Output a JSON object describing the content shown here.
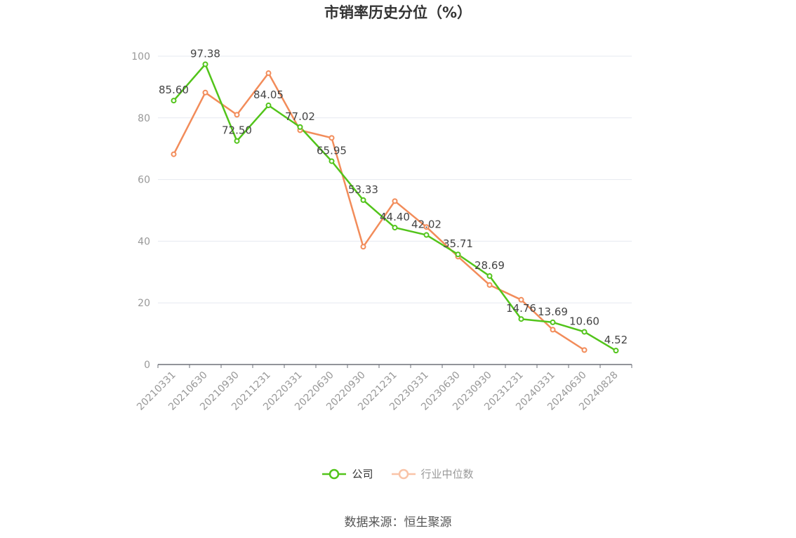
{
  "chart_data": {
    "type": "line",
    "title": "市销率历史分位（%）",
    "x": [
      "20210331",
      "20210630",
      "20210930",
      "20211231",
      "20220331",
      "20220630",
      "20220930",
      "20221231",
      "20230331",
      "20230630",
      "20230930",
      "20231231",
      "20240331",
      "20240630",
      "20240828"
    ],
    "ylim": [
      0,
      100
    ],
    "yticks": [
      0,
      20,
      40,
      60,
      80,
      100
    ],
    "grid": true,
    "legend_position": "bottom",
    "series": [
      {
        "name": "公司",
        "color": "#52c41a",
        "values": [
          85.6,
          97.38,
          72.5,
          84.05,
          77.02,
          65.95,
          53.33,
          44.4,
          42.02,
          35.71,
          28.69,
          14.76,
          13.69,
          10.6,
          4.52
        ],
        "labels": [
          "85.60",
          "97.38",
          "72.50",
          "84.05",
          "77.02",
          "65.95",
          "53.33",
          "44.40",
          "42.02",
          "35.71",
          "28.69",
          "14.76",
          "13.69",
          "10.60",
          "4.52"
        ]
      },
      {
        "name": "行业中位数",
        "color": "#f28c5a",
        "values": [
          68.2,
          88.2,
          81.0,
          94.5,
          76.0,
          73.5,
          38.2,
          53.0,
          44.6,
          35.0,
          25.8,
          21.0,
          11.3,
          4.7,
          null
        ]
      }
    ],
    "source": "数据来源：恒生聚源"
  }
}
